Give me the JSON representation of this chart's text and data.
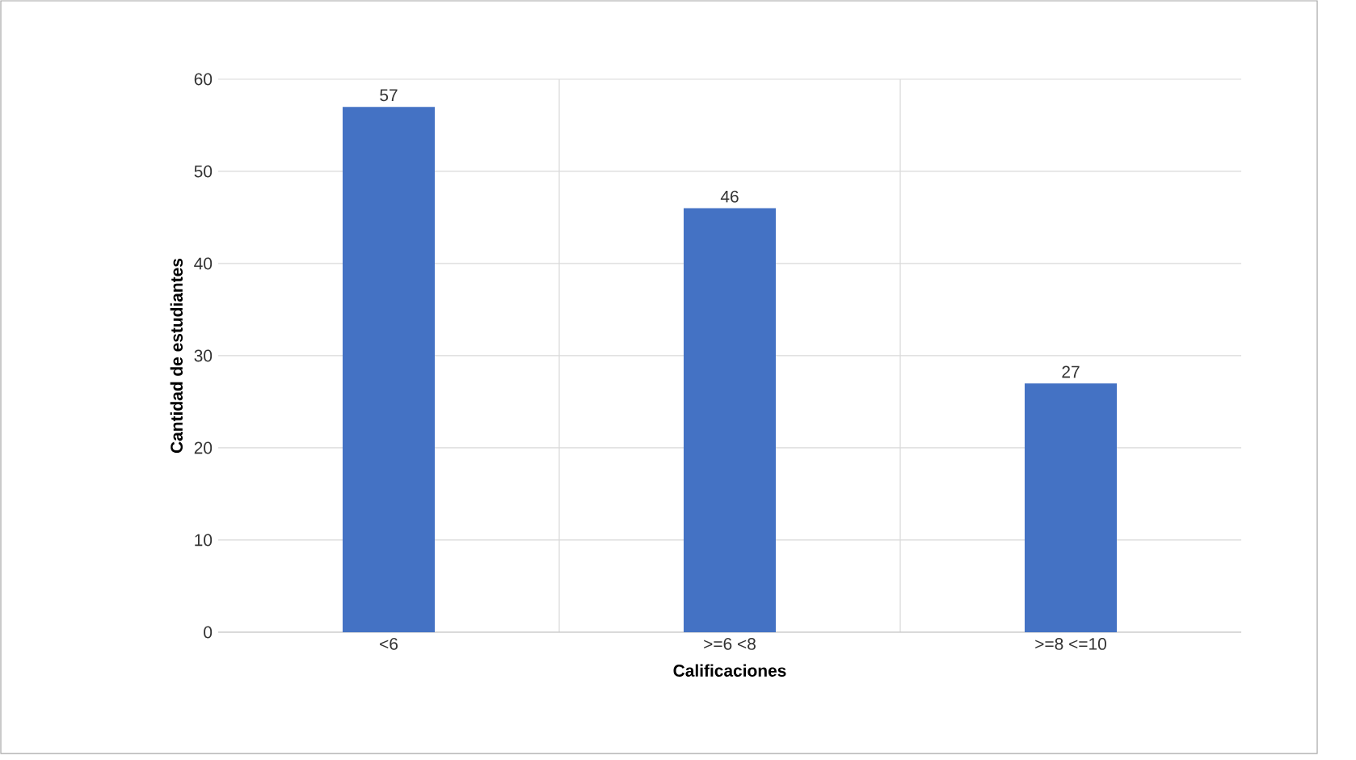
{
  "chart_data": {
    "type": "bar",
    "xlabel": "Calificaciones",
    "ylabel": "Cantidad de estudiantes",
    "categories": [
      "<6",
      ">=6 <8",
      ">=8 <=10"
    ],
    "values": [
      57,
      46,
      27
    ],
    "color": "#4472c4",
    "ylim": [
      0,
      60
    ],
    "yticks": [
      0,
      10,
      20,
      30,
      40,
      50,
      60
    ],
    "grid": true,
    "data_labels": true
  }
}
